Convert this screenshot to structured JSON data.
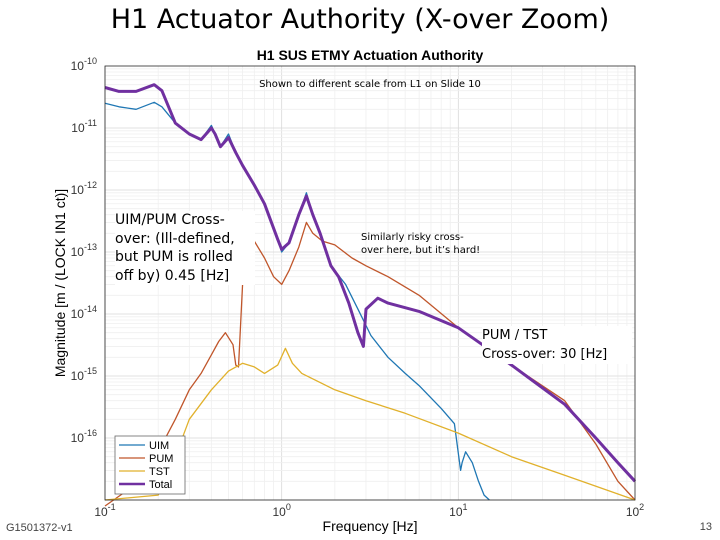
{
  "slide": {
    "title": "H1 Actuator Authority (X-over Zoom)",
    "footer_id": "G1501372-v1",
    "page_number": "13"
  },
  "annotations": {
    "scale_note": "Shown to different scale from L1 on Slide 10",
    "uim_pum_crossover": "UIM/PUM Cross-over: (Ill-defined, but PUM is rolled off by) 0.45 [Hz]",
    "risky_crossover": "Similarly risky cross-over here, but it’s hard!",
    "pum_tst_crossover_title": "PUM / TST",
    "pum_tst_crossover_value": "Cross-over: 30 [Hz]"
  },
  "chart_data": {
    "type": "line",
    "title": "H1 SUS ETMY Actuation Authority",
    "xlabel": "Frequency [Hz]",
    "ylabel": "Magnitude [m / (LOCK IN1 ct)]",
    "xscale": "log",
    "yscale": "log",
    "xlim": [
      0.1,
      100
    ],
    "ylim": [
      1e-17,
      1e-10
    ],
    "xticks": [
      {
        "value": 0.1,
        "base": "10",
        "exp": "-1"
      },
      {
        "value": 1,
        "base": "10",
        "exp": "0"
      },
      {
        "value": 10,
        "base": "10",
        "exp": "1"
      },
      {
        "value": 100,
        "base": "10",
        "exp": "2"
      }
    ],
    "yticks": [
      {
        "value": 1e-10,
        "base": "10",
        "exp": "-10"
      },
      {
        "value": 1e-11,
        "base": "10",
        "exp": "-11"
      },
      {
        "value": 1e-12,
        "base": "10",
        "exp": "-12"
      },
      {
        "value": 1e-13,
        "base": "10",
        "exp": "-13"
      },
      {
        "value": 1e-14,
        "base": "10",
        "exp": "-14"
      },
      {
        "value": 1e-15,
        "base": "10",
        "exp": "-15"
      },
      {
        "value": 1e-16,
        "base": "10",
        "exp": "-16"
      }
    ],
    "grid": true,
    "legend_position": "bottom-left",
    "series": [
      {
        "name": "UIM",
        "color": "#1f77b4",
        "width": 1.3,
        "points": [
          [
            0.1,
            2.5e-11
          ],
          [
            0.12,
            2.2e-11
          ],
          [
            0.15,
            2e-11
          ],
          [
            0.19,
            2.6e-11
          ],
          [
            0.21,
            2.2e-11
          ],
          [
            0.25,
            1.2e-11
          ],
          [
            0.3,
            8e-12
          ],
          [
            0.35,
            6.5e-12
          ],
          [
            0.4,
            1.1e-11
          ],
          [
            0.42,
            8e-12
          ],
          [
            0.45,
            5e-12
          ],
          [
            0.5,
            8e-12
          ],
          [
            0.55,
            4e-12
          ],
          [
            0.6,
            2.5e-12
          ],
          [
            0.7,
            1.2e-12
          ],
          [
            0.8,
            6e-13
          ],
          [
            0.95,
            1.6e-13
          ],
          [
            1.0,
            1e-13
          ],
          [
            1.1,
            1.4e-13
          ],
          [
            1.25,
            4e-13
          ],
          [
            1.38,
            9e-13
          ],
          [
            1.5,
            4e-13
          ],
          [
            1.65,
            2e-13
          ],
          [
            1.9,
            6e-14
          ],
          [
            2.3,
            3e-14
          ],
          [
            2.7,
            1.2e-14
          ],
          [
            3.2,
            4.5e-15
          ],
          [
            4,
            2e-15
          ],
          [
            5,
            1.1e-15
          ],
          [
            6,
            7e-16
          ],
          [
            8,
            3e-16
          ],
          [
            9.5,
            1.7e-16
          ],
          [
            10.3,
            3e-17
          ],
          [
            10.5,
            4e-17
          ],
          [
            11,
            6e-17
          ],
          [
            12,
            4e-17
          ],
          [
            13,
            2e-17
          ],
          [
            14,
            1.2e-17
          ],
          [
            15,
            1e-17
          ]
        ]
      },
      {
        "name": "PUM",
        "color": "#c0562b",
        "width": 1.3,
        "points": [
          [
            0.1,
            8e-18
          ],
          [
            0.15,
            1.8e-17
          ],
          [
            0.2,
            6e-17
          ],
          [
            0.25,
            2e-16
          ],
          [
            0.3,
            6e-16
          ],
          [
            0.35,
            1.1e-15
          ],
          [
            0.4,
            2.2e-15
          ],
          [
            0.44,
            3.6e-15
          ],
          [
            0.48,
            5e-15
          ],
          [
            0.53,
            3.2e-15
          ],
          [
            0.55,
            1.5e-15
          ],
          [
            0.57,
            1.4e-15
          ],
          [
            0.61,
            7e-14
          ],
          [
            0.7,
            1.5e-13
          ],
          [
            0.8,
            8e-14
          ],
          [
            0.9,
            4e-14
          ],
          [
            1.0,
            3e-14
          ],
          [
            1.1,
            5e-14
          ],
          [
            1.25,
            1.2e-13
          ],
          [
            1.38,
            3e-13
          ],
          [
            1.5,
            2e-13
          ],
          [
            1.7,
            1.5e-13
          ],
          [
            2,
            1.3e-13
          ],
          [
            2.5,
            8e-14
          ],
          [
            3,
            6e-14
          ],
          [
            4,
            4e-14
          ],
          [
            6,
            2e-14
          ],
          [
            10,
            6e-15
          ],
          [
            20,
            1.5e-15
          ],
          [
            40,
            4e-16
          ],
          [
            60,
            8e-17
          ],
          [
            80,
            2e-17
          ],
          [
            100,
            1e-17
          ]
        ]
      },
      {
        "name": "TST",
        "color": "#e1b12c",
        "width": 1.3,
        "points": [
          [
            0.1,
            1e-17
          ],
          [
            0.2,
            1.2e-17
          ],
          [
            0.25,
            5e-17
          ],
          [
            0.3,
            2e-16
          ],
          [
            0.4,
            6e-16
          ],
          [
            0.5,
            1.2e-15
          ],
          [
            0.6,
            1.6e-15
          ],
          [
            0.7,
            1.4e-15
          ],
          [
            0.8,
            1.1e-15
          ],
          [
            0.95,
            1.5e-15
          ],
          [
            1.05,
            2.8e-15
          ],
          [
            1.15,
            1.6e-15
          ],
          [
            1.3,
            1.1e-15
          ],
          [
            2,
            6e-16
          ],
          [
            3,
            4e-16
          ],
          [
            5,
            2.5e-16
          ],
          [
            10,
            1.2e-16
          ],
          [
            20,
            5e-17
          ],
          [
            40,
            2.5e-17
          ],
          [
            100,
            1e-17
          ]
        ]
      },
      {
        "name": "Total",
        "color": "#7030a0",
        "width": 3,
        "points": [
          [
            0.1,
            4.5e-11
          ],
          [
            0.12,
            3.9e-11
          ],
          [
            0.15,
            3.9e-11
          ],
          [
            0.19,
            5e-11
          ],
          [
            0.21,
            4e-11
          ],
          [
            0.25,
            1.2e-11
          ],
          [
            0.3,
            8e-12
          ],
          [
            0.35,
            6.5e-12
          ],
          [
            0.4,
            1e-11
          ],
          [
            0.42,
            8e-12
          ],
          [
            0.45,
            5e-12
          ],
          [
            0.5,
            7e-12
          ],
          [
            0.55,
            4e-12
          ],
          [
            0.6,
            2.5e-12
          ],
          [
            0.7,
            1.2e-12
          ],
          [
            0.8,
            6e-13
          ],
          [
            0.95,
            1.6e-13
          ],
          [
            1.0,
            1.1e-13
          ],
          [
            1.1,
            1.4e-13
          ],
          [
            1.25,
            4e-13
          ],
          [
            1.38,
            8e-13
          ],
          [
            1.5,
            4e-13
          ],
          [
            1.65,
            2e-13
          ],
          [
            1.9,
            6e-14
          ],
          [
            2.1,
            4e-14
          ],
          [
            2.4,
            1.5e-14
          ],
          [
            2.7,
            5e-15
          ],
          [
            2.9,
            3e-15
          ],
          [
            3.0,
            1.2e-14
          ],
          [
            3.5,
            1.8e-14
          ],
          [
            4,
            1.5e-14
          ],
          [
            6,
            1.1e-14
          ],
          [
            10,
            6e-15
          ],
          [
            20,
            1.5e-15
          ],
          [
            40,
            3.5e-16
          ],
          [
            60,
            1e-16
          ],
          [
            80,
            4e-17
          ],
          [
            100,
            2e-17
          ]
        ]
      }
    ]
  }
}
